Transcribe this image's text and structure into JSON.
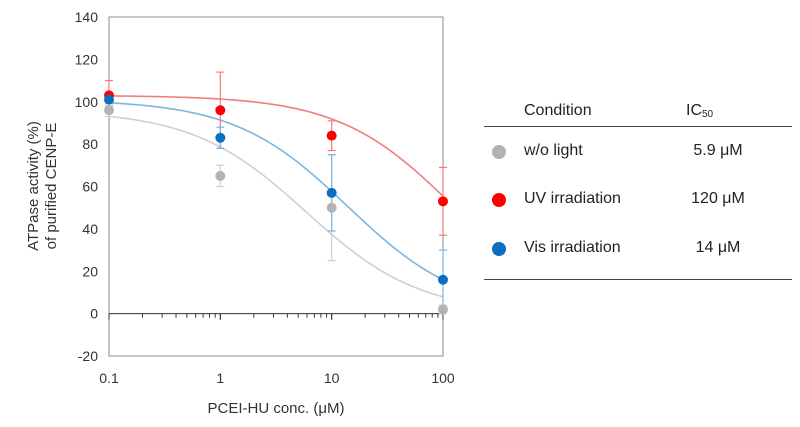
{
  "chart_data": {
    "type": "scatter",
    "xscale": "log",
    "xlim": [
      0.1,
      100
    ],
    "ylim": [
      -20,
      140
    ],
    "x_ticks": [
      "0.1",
      "1",
      "10",
      "100"
    ],
    "y_ticks": [
      "-20",
      "0",
      "20",
      "40",
      "60",
      "80",
      "100",
      "120",
      "140"
    ],
    "xlabel": "PCEI-HU conc. (μM)",
    "ylabel_line1": "ATPase activity (%)",
    "ylabel_line2": "of purified CENP-E",
    "grid": false,
    "fit_curves": true,
    "series": [
      {
        "name": "w/o light",
        "color": "#b3b3b3",
        "curve_color": "#d0d0d0",
        "ic50": 5.9,
        "x": [
          0.1,
          1,
          10,
          100
        ],
        "y": [
          96,
          65,
          50,
          2
        ],
        "yerr": [
          3,
          5,
          25,
          2
        ]
      },
      {
        "name": "UV irradiation",
        "color": "#ff0000",
        "curve_color": "#f47c7c",
        "ic50": 120,
        "x": [
          0.1,
          1,
          10,
          100
        ],
        "y": [
          103,
          96,
          84,
          53
        ],
        "yerr": [
          7,
          18,
          7,
          16
        ]
      },
      {
        "name": "Vis irradiation",
        "color": "#0b6fc0",
        "curve_color": "#7bb6e0",
        "ic50": 14,
        "x": [
          0.1,
          1,
          10,
          100
        ],
        "y": [
          101,
          83,
          57,
          16
        ],
        "yerr": [
          3,
          5,
          18,
          14
        ]
      }
    ]
  },
  "legend_table": {
    "header_condition": "Condition",
    "header_ic": "IC",
    "header_ic_sub": "50",
    "rows": [
      {
        "label": "w/o light",
        "value": "5.9 μM",
        "color": "#b3b3b3"
      },
      {
        "label": "UV irradiation",
        "value": "120 μM",
        "color": "#ff0000"
      },
      {
        "label": "Vis irradiation",
        "value": "14 μM",
        "color": "#0b6fc0"
      }
    ]
  }
}
